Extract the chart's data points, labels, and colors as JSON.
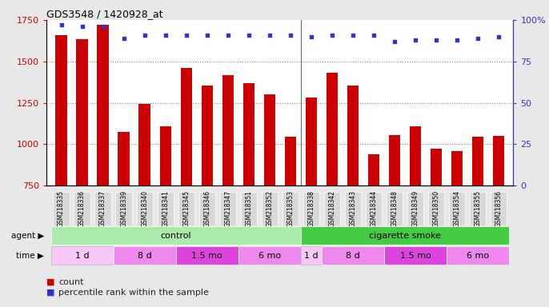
{
  "title": "GDS3548 / 1420928_at",
  "samples": [
    "GSM218335",
    "GSM218336",
    "GSM218337",
    "GSM218339",
    "GSM218340",
    "GSM218341",
    "GSM218345",
    "GSM218346",
    "GSM218347",
    "GSM218351",
    "GSM218352",
    "GSM218353",
    "GSM218338",
    "GSM218342",
    "GSM218343",
    "GSM218344",
    "GSM218348",
    "GSM218349",
    "GSM218350",
    "GSM218354",
    "GSM218355",
    "GSM218356"
  ],
  "bar_values": [
    1660,
    1635,
    1720,
    1075,
    1245,
    1110,
    1460,
    1355,
    1415,
    1370,
    1300,
    1045,
    1280,
    1430,
    1355,
    940,
    1055,
    1110,
    975,
    960,
    1045,
    1050
  ],
  "dot_values": [
    97,
    96,
    96,
    89,
    91,
    91,
    91,
    91,
    91,
    91,
    91,
    91,
    90,
    91,
    91,
    91,
    87,
    88,
    88,
    88,
    89,
    90
  ],
  "bar_color": "#cc0000",
  "dot_color": "#3333cc",
  "ymin": 750,
  "ymax": 1750,
  "yticks": [
    750,
    1000,
    1250,
    1500,
    1750
  ],
  "y2ticks": [
    0,
    25,
    50,
    75,
    100
  ],
  "y2labels": [
    "0",
    "25",
    "50",
    "75",
    "100%"
  ],
  "agent_groups": [
    {
      "label": "control",
      "start": 0,
      "end": 12,
      "color": "#aaeea a"
    },
    {
      "label": "cigarette smoke",
      "start": 12,
      "end": 22,
      "color": "#44cc44"
    }
  ],
  "time_groups": [
    {
      "label": "1 d",
      "start": 0,
      "end": 3,
      "color": "#f8c8f8"
    },
    {
      "label": "8 d",
      "start": 3,
      "end": 6,
      "color": "#ee88ee"
    },
    {
      "label": "1.5 mo",
      "start": 6,
      "end": 9,
      "color": "#dd44dd"
    },
    {
      "label": "6 mo",
      "start": 9,
      "end": 12,
      "color": "#ee88ee"
    },
    {
      "label": "1 d",
      "start": 12,
      "end": 13,
      "color": "#f8c8f8"
    },
    {
      "label": "8 d",
      "start": 13,
      "end": 16,
      "color": "#ee88ee"
    },
    {
      "label": "1.5 mo",
      "start": 16,
      "end": 19,
      "color": "#dd44dd"
    },
    {
      "label": "6 mo",
      "start": 19,
      "end": 22,
      "color": "#ee88ee"
    }
  ],
  "bar_width": 0.55,
  "grid_color": "#888888",
  "bg_color": "#e8e8e8",
  "plot_bg": "#ffffff",
  "tick_bg": "#d8d8d8"
}
